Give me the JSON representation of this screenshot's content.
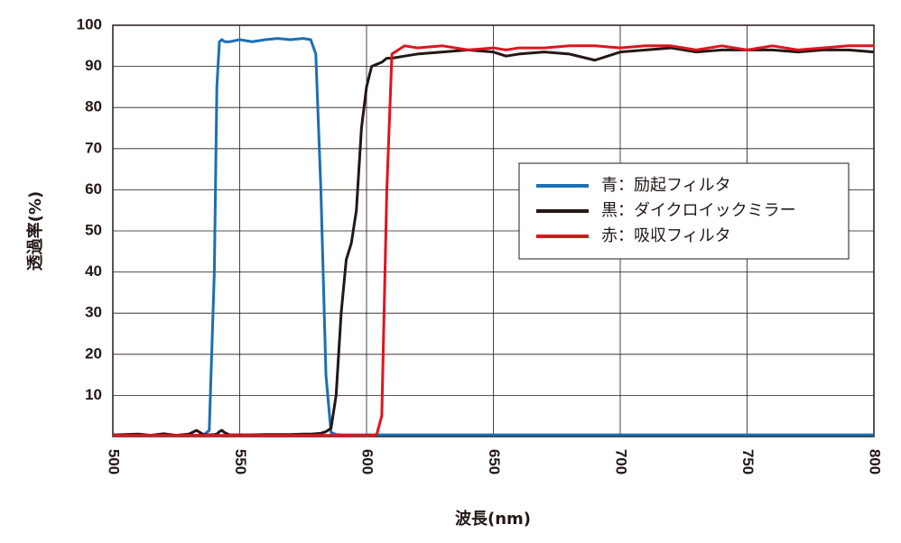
{
  "chart_data": {
    "type": "line",
    "xlabel": "波長(nm)",
    "ylabel": "透過率(%)",
    "x": [
      500,
      505,
      510,
      515,
      520,
      525,
      530,
      533,
      536,
      538,
      540,
      541,
      542,
      543,
      544,
      546,
      550,
      555,
      560,
      565,
      570,
      575,
      578,
      580,
      582,
      584,
      586,
      588,
      590,
      592,
      594,
      596,
      598,
      600,
      602,
      604,
      606,
      608,
      610,
      615,
      620,
      630,
      640,
      650,
      655,
      660,
      670,
      680,
      690,
      700,
      710,
      720,
      730,
      740,
      750,
      760,
      770,
      780,
      790,
      800
    ],
    "series": [
      {
        "name": "青：励起フィルタ",
        "color": "#1a6fb5",
        "values": [
          0.3,
          0.3,
          0.3,
          0.3,
          0.3,
          0.3,
          0.3,
          0.3,
          0.5,
          1.5,
          40,
          85,
          96,
          96.5,
          96,
          96,
          96.5,
          96,
          96.5,
          96.8,
          96.5,
          96.8,
          96.5,
          93,
          60,
          15,
          1,
          0.5,
          0.4,
          0.4,
          0.4,
          0.4,
          0.4,
          0.4,
          0.4,
          0.4,
          0.4,
          0.4,
          0.4,
          0.4,
          0.4,
          0.4,
          0.4,
          0.4,
          0.4,
          0.4,
          0.4,
          0.4,
          0.4,
          0.4,
          0.4,
          0.4,
          0.4,
          0.4,
          0.4,
          0.4,
          0.4,
          0.4,
          0.4,
          0.4
        ]
      },
      {
        "name": "黒：ダイクロイックミラー",
        "color": "#231815",
        "values": [
          0.4,
          0.5,
          0.6,
          0.3,
          0.7,
          0.3,
          0.6,
          1.5,
          0.4,
          0.4,
          0.5,
          0.6,
          1.2,
          1.5,
          1,
          0.4,
          0.4,
          0.4,
          0.5,
          0.5,
          0.5,
          0.6,
          0.6,
          0.7,
          0.8,
          1.2,
          2,
          10,
          30,
          43,
          47,
          55,
          75,
          85,
          90,
          90.5,
          91,
          92,
          92,
          92.5,
          93,
          93.5,
          94,
          93.5,
          92.5,
          93,
          93.5,
          93,
          91.5,
          93.5,
          94,
          94.5,
          93.5,
          94,
          94,
          94,
          93.5,
          94,
          94,
          93.5
        ]
      },
      {
        "name": "赤：吸収フィルタ",
        "color": "#e0141e",
        "values": [
          0.3,
          0.3,
          0.3,
          0.3,
          0.3,
          0.3,
          0.3,
          0.3,
          0.3,
          0.3,
          0.3,
          0.3,
          0.3,
          0.3,
          0.3,
          0.3,
          0.3,
          0.3,
          0.3,
          0.3,
          0.3,
          0.3,
          0.3,
          0.3,
          0.3,
          0.3,
          0.3,
          0.3,
          0.3,
          0.3,
          0.3,
          0.3,
          0.3,
          0.3,
          0.3,
          0.5,
          5,
          60,
          93,
          95,
          94.5,
          95,
          94,
          94.5,
          94,
          94.5,
          94.5,
          95,
          95,
          94.5,
          95,
          95,
          94,
          95,
          94,
          95,
          94,
          94.5,
          95,
          95
        ]
      }
    ],
    "xlim": [
      500,
      800
    ],
    "xticks": [
      500,
      550,
      600,
      650,
      700,
      750,
      800
    ],
    "ylim": [
      0,
      100
    ],
    "yticks": [
      10,
      20,
      30,
      40,
      50,
      60,
      70,
      80,
      90,
      100
    ],
    "grid": true
  }
}
